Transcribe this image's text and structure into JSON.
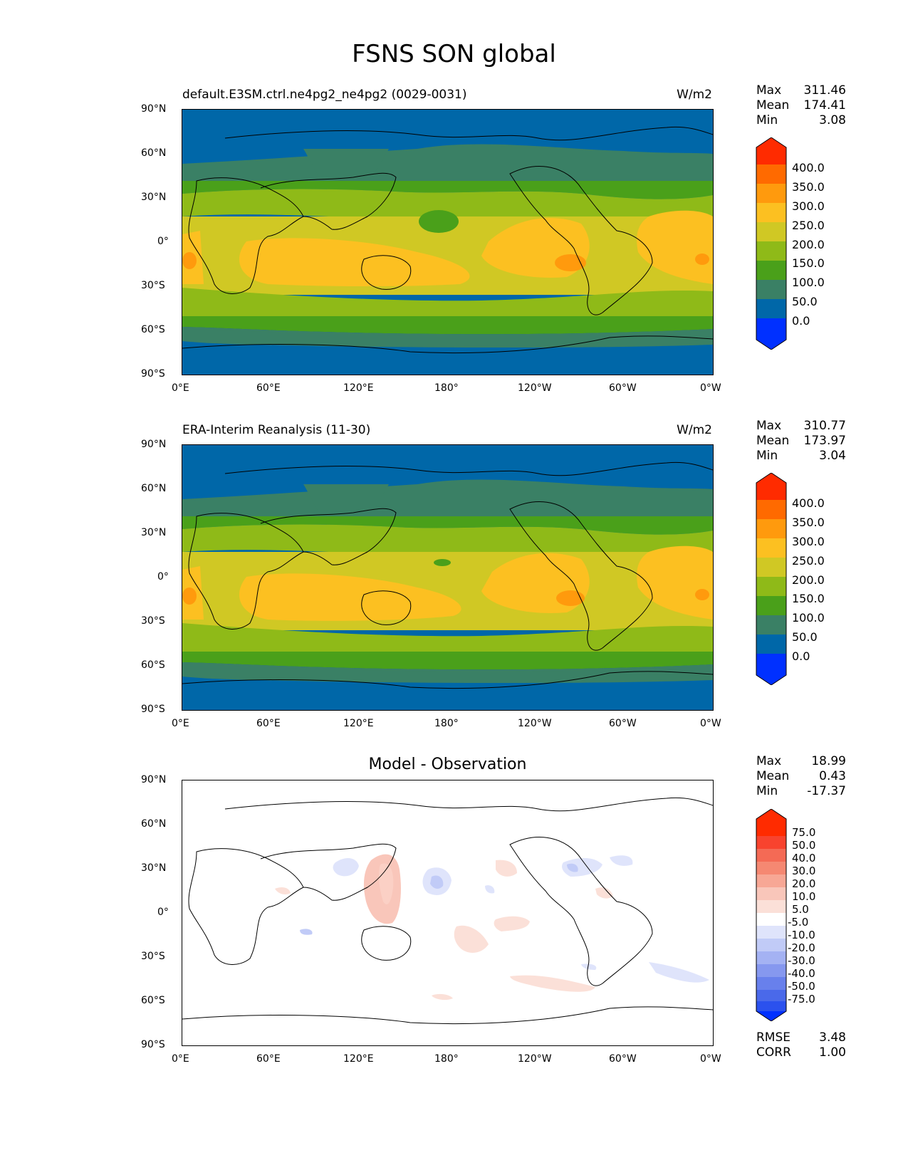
{
  "figure_title": "FSNS SON global",
  "axes": {
    "lat_ticks": [
      "90°N",
      "60°N",
      "30°N",
      "0°",
      "30°S",
      "60°S",
      "90°S"
    ],
    "lon_ticks": [
      "0°E",
      "60°E",
      "120°E",
      "180°",
      "120°W",
      "60°W",
      "0°W"
    ]
  },
  "panels": [
    {
      "title_left": "default.E3SM.ctrl.ne4pg2_ne4pg2 (0029-0031)",
      "title_center": "",
      "units": "W/m2",
      "stats": [
        {
          "label": "Max",
          "value": "311.46"
        },
        {
          "label": "Mean",
          "value": "174.41"
        },
        {
          "label": "Min",
          "value": "3.08"
        }
      ],
      "colorbar": {
        "labels": [
          "400.0",
          "350.0",
          "300.0",
          "250.0",
          "200.0",
          "150.0",
          "100.0",
          "50.0",
          "0.0"
        ],
        "colors": [
          "#ff2b00",
          "#ff6a00",
          "#ff9a0d",
          "#fcc021",
          "#d0c824",
          "#8fba18",
          "#4aa01a",
          "#3a8065",
          "#0067a8",
          "#0030ff"
        ]
      }
    },
    {
      "title_left": "ERA-Interim Reanalysis (11-30)",
      "title_center": "",
      "units": "W/m2",
      "stats": [
        {
          "label": "Max",
          "value": "310.77"
        },
        {
          "label": "Mean",
          "value": "173.97"
        },
        {
          "label": "Min",
          "value": "3.04"
        }
      ],
      "colorbar": {
        "labels": [
          "400.0",
          "350.0",
          "300.0",
          "250.0",
          "200.0",
          "150.0",
          "100.0",
          "50.0",
          "0.0"
        ],
        "colors": [
          "#ff2b00",
          "#ff6a00",
          "#ff9a0d",
          "#fcc021",
          "#d0c824",
          "#8fba18",
          "#4aa01a",
          "#3a8065",
          "#0067a8",
          "#0030ff"
        ]
      }
    },
    {
      "title_left": "",
      "title_center": "Model - Observation",
      "units": "",
      "stats": [
        {
          "label": "Max",
          "value": "18.99"
        },
        {
          "label": "Mean",
          "value": "0.43"
        },
        {
          "label": "Min",
          "value": "-17.37"
        }
      ],
      "colorbar": {
        "labels": [
          "75.0",
          "50.0",
          "40.0",
          "30.0",
          "20.0",
          "10.0",
          "5.0",
          "-5.0",
          "-10.0",
          "-20.0",
          "-30.0",
          "-40.0",
          "-50.0",
          "-75.0"
        ],
        "colors": [
          "#ff2b00",
          "#f8432e",
          "#f46a55",
          "#f58872",
          "#f7a795",
          "#f9c6ba",
          "#fbe0d8",
          "#ffffff",
          "#dfe4fb",
          "#c1cbf7",
          "#a4b2f3",
          "#8698ef",
          "#6880ec",
          "#4a69ea",
          "#2b51ee",
          "#0030ff"
        ]
      },
      "metrics": [
        {
          "label": "RMSE",
          "value": "3.48"
        },
        {
          "label": "CORR",
          "value": "1.00"
        }
      ]
    }
  ]
}
